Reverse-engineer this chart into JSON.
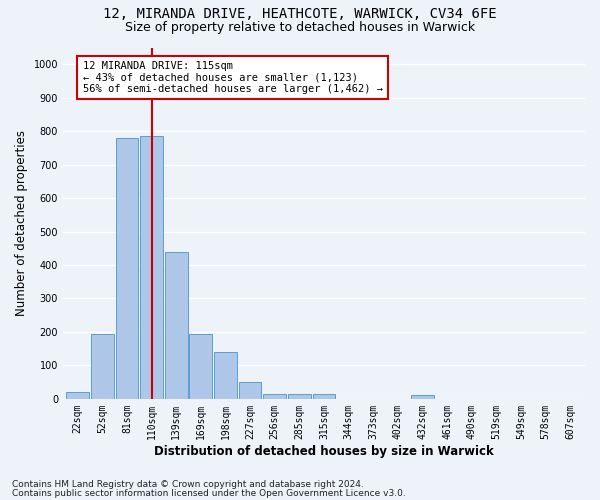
{
  "title_line1": "12, MIRANDA DRIVE, HEATHCOTE, WARWICK, CV34 6FE",
  "title_line2": "Size of property relative to detached houses in Warwick",
  "xlabel": "Distribution of detached houses by size in Warwick",
  "ylabel": "Number of detached properties",
  "bar_color": "#aec6e8",
  "bar_edge_color": "#5a9fd4",
  "bin_labels": [
    "22sqm",
    "52sqm",
    "81sqm",
    "110sqm",
    "139sqm",
    "169sqm",
    "198sqm",
    "227sqm",
    "256sqm",
    "285sqm",
    "315sqm",
    "344sqm",
    "373sqm",
    "402sqm",
    "432sqm",
    "461sqm",
    "490sqm",
    "519sqm",
    "549sqm",
    "578sqm",
    "607sqm"
  ],
  "bar_heights": [
    20,
    195,
    780,
    785,
    440,
    195,
    140,
    50,
    15,
    13,
    13,
    0,
    0,
    0,
    11,
    0,
    0,
    0,
    0,
    0,
    0
  ],
  "ylim": [
    0,
    1050
  ],
  "yticks": [
    0,
    100,
    200,
    300,
    400,
    500,
    600,
    700,
    800,
    900,
    1000
  ],
  "red_line_bin": 3,
  "annotation_text": "12 MIRANDA DRIVE: 115sqm\n← 43% of detached houses are smaller (1,123)\n56% of semi-detached houses are larger (1,462) →",
  "annotation_box_color": "#ffffff",
  "annotation_box_edge_color": "#cc0000",
  "red_line_color": "#cc0000",
  "footer_line1": "Contains HM Land Registry data © Crown copyright and database right 2024.",
  "footer_line2": "Contains public sector information licensed under the Open Government Licence v3.0.",
  "background_color": "#eef2f9",
  "plot_background": "#eef2f9",
  "grid_color": "#ffffff",
  "title_fontsize": 10,
  "subtitle_fontsize": 9,
  "axis_label_fontsize": 8.5,
  "tick_fontsize": 7,
  "annotation_fontsize": 7.5,
  "footer_fontsize": 6.5
}
